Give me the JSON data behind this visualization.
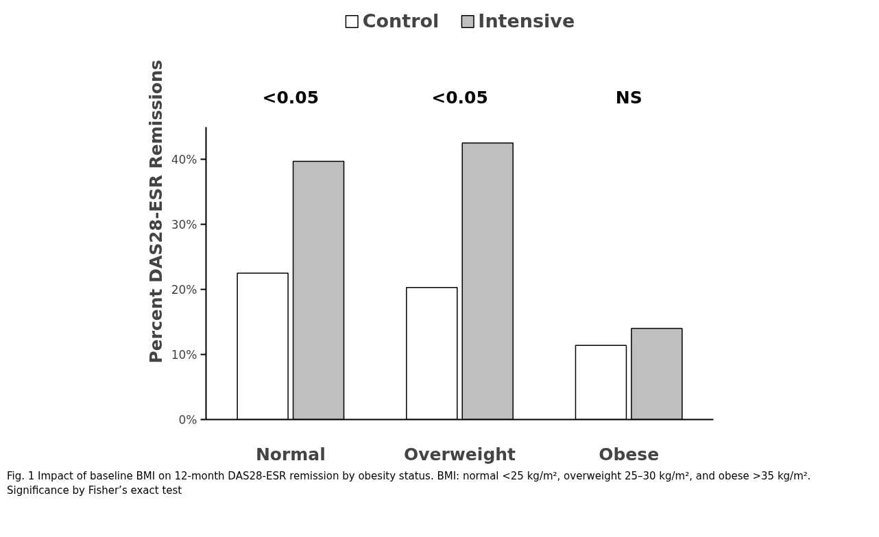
{
  "chart_data": {
    "type": "bar",
    "categories": [
      "Normal",
      "Overweight",
      "Obese"
    ],
    "series": [
      {
        "name": "Control",
        "color": "#ffffff",
        "values": [
          22.5,
          20.3,
          11.4
        ]
      },
      {
        "name": "Intensive",
        "color": "#bfbfbf",
        "values": [
          39.7,
          42.5,
          14.0
        ]
      }
    ],
    "ylabel": "Percent DAS28-ESR Remissions",
    "ylim": [
      0,
      45
    ],
    "yticks": [
      {
        "value": 0,
        "label": "0%"
      },
      {
        "value": 10,
        "label": "10%"
      },
      {
        "value": 20,
        "label": "20%"
      },
      {
        "value": 30,
        "label": "30%"
      },
      {
        "value": 40,
        "label": "40%"
      }
    ],
    "grid": false,
    "legend": "top",
    "annotations": [
      "<0.05",
      "<0.05",
      "NS",
      "Fig. 1  Impact of baseline BMI on 12-month DAS28-ESR remission by obesity status. BMI: normal <25 kg/m², overweight 25–30 kg/m², and obese >35 kg/m². Significance by Fisher’s exact test"
    ]
  }
}
